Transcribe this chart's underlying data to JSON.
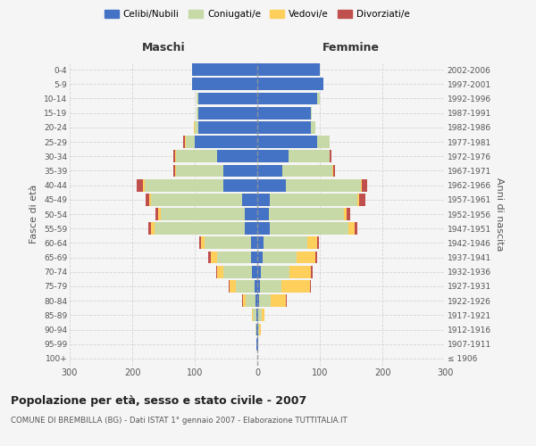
{
  "age_groups": [
    "100+",
    "95-99",
    "90-94",
    "85-89",
    "80-84",
    "75-79",
    "70-74",
    "65-69",
    "60-64",
    "55-59",
    "50-54",
    "45-49",
    "40-44",
    "35-39",
    "30-34",
    "25-29",
    "20-24",
    "15-19",
    "10-14",
    "5-9",
    "0-4"
  ],
  "birth_years": [
    "≤ 1906",
    "1907-1911",
    "1912-1916",
    "1917-1921",
    "1922-1926",
    "1927-1931",
    "1932-1936",
    "1937-1941",
    "1942-1946",
    "1947-1951",
    "1952-1956",
    "1957-1961",
    "1962-1966",
    "1967-1971",
    "1972-1976",
    "1977-1981",
    "1982-1986",
    "1987-1991",
    "1992-1996",
    "1997-2001",
    "2002-2006"
  ],
  "males": {
    "celibi": [
      0,
      1,
      1,
      2,
      3,
      5,
      9,
      10,
      10,
      20,
      20,
      25,
      55,
      55,
      65,
      100,
      95,
      95,
      95,
      105,
      105
    ],
    "coniugati": [
      0,
      0,
      2,
      5,
      15,
      30,
      45,
      55,
      75,
      145,
      135,
      145,
      125,
      75,
      65,
      15,
      5,
      2,
      2,
      0,
      0
    ],
    "vedovi": [
      0,
      0,
      0,
      2,
      5,
      10,
      10,
      10,
      5,
      5,
      3,
      3,
      3,
      2,
      2,
      1,
      1,
      0,
      0,
      0,
      0
    ],
    "divorziati": [
      0,
      0,
      0,
      0,
      1,
      1,
      2,
      3,
      3,
      5,
      5,
      5,
      10,
      2,
      2,
      3,
      1,
      0,
      0,
      0,
      0
    ]
  },
  "females": {
    "nubili": [
      0,
      1,
      1,
      2,
      3,
      4,
      6,
      8,
      10,
      20,
      18,
      20,
      45,
      40,
      50,
      95,
      85,
      85,
      95,
      105,
      100
    ],
    "coniugate": [
      0,
      0,
      2,
      5,
      18,
      35,
      45,
      55,
      70,
      125,
      120,
      140,
      120,
      80,
      65,
      20,
      8,
      2,
      5,
      0,
      0
    ],
    "vedove": [
      0,
      0,
      2,
      5,
      25,
      45,
      35,
      30,
      15,
      10,
      5,
      3,
      2,
      1,
      1,
      0,
      0,
      0,
      0,
      0,
      0
    ],
    "divorziate": [
      0,
      0,
      0,
      0,
      1,
      1,
      2,
      3,
      3,
      5,
      5,
      10,
      8,
      3,
      3,
      1,
      0,
      0,
      0,
      0,
      0
    ]
  },
  "colors": {
    "celibi_nubili": "#4472C4",
    "coniugati_e": "#C8D9A8",
    "vedovi_e": "#FFCF5C",
    "divorziati_e": "#C0504D"
  },
  "xlim": 300,
  "title": "Popolazione per età, sesso e stato civile - 2007",
  "subtitle": "COMUNE DI BREMBILLA (BG) - Dati ISTAT 1° gennaio 2007 - Elaborazione TUTTITALIA.IT",
  "xlabel_left": "Maschi",
  "xlabel_right": "Femmine",
  "ylabel_left": "Fasce di età",
  "ylabel_right": "Anni di nascita",
  "background_color": "#f5f5f5",
  "grid_color": "#cccccc"
}
